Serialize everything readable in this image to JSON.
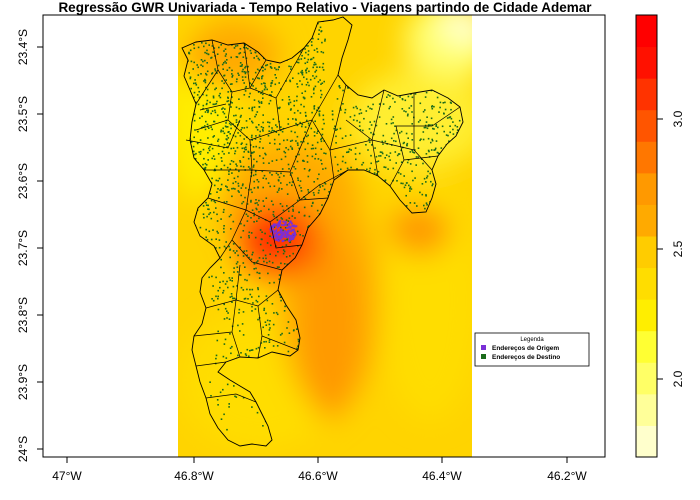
{
  "title": "Regressão GWR Univariada - Tempo Relativo - Viagens partindo de Cidade Ademar",
  "x_ticks": [
    "47°W",
    "46.8°W",
    "46.6°W",
    "46.4°W",
    "46.2°W"
  ],
  "y_ticks": [
    "23.4°S",
    "23.5°S",
    "23.6°S",
    "23.7°S",
    "23.8°S",
    "23.9°S",
    "24°S"
  ],
  "legend": {
    "title": "Legenda",
    "items": [
      {
        "label": "Endereços de Origem",
        "color": "#7a2fd6"
      },
      {
        "label": "Endereços de Destino",
        "color": "#1a6b1a"
      }
    ]
  },
  "colorbar": {
    "ticks": [
      "2.0",
      "2.5",
      "3.0"
    ],
    "tick_values": [
      2.0,
      2.5,
      3.0
    ],
    "range": [
      1.7,
      3.4
    ],
    "colors": [
      "#ffffcc",
      "#ffff99",
      "#ffff66",
      "#ffff33",
      "#ffee00",
      "#ffdd00",
      "#ffcc00",
      "#ffaa00",
      "#ff9900",
      "#ff7700",
      "#ff5500",
      "#ff3300",
      "#ff1100",
      "#ff0000"
    ]
  },
  "chart_data": {
    "type": "heatmap",
    "title": "Regressão GWR Univariada - Tempo Relativo - Viagens partindo de Cidade Ademar",
    "xlim": [
      -47.05,
      -46.14
    ],
    "ylim": [
      -24.02,
      -23.36
    ],
    "raster_extent_x": [
      -46.83,
      -46.35
    ],
    "value_range": [
      1.7,
      3.4
    ],
    "hotspot": {
      "lon": -46.67,
      "lat": -23.69,
      "value": 3.4
    },
    "origin_cluster": {
      "lon": -46.665,
      "lat": -23.675
    }
  }
}
